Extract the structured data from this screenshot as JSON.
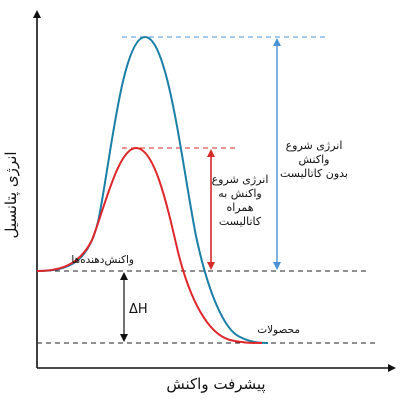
{
  "axes": {
    "y_label": "انرژی پتانسیل",
    "x_label": "پیشرفت واکنش"
  },
  "labels": {
    "reactants": "واکنش‌دهنده‌ها",
    "products": "محصولات",
    "delta_h": "ΔH",
    "uncatalyzed": [
      "انرژی شروع",
      "واکنش",
      "بدون کاتالیست"
    ],
    "catalyzed": [
      "انرژی شروع",
      "واکنش به",
      "همراه",
      "کاتالیست"
    ]
  },
  "colors": {
    "uncatalyzed_curve": "#1a7fa6",
    "catalyzed_curve": "#e0262a",
    "uncatalyzed_arrow": "#4a93d6",
    "catalyzed_arrow": "#d42a2a",
    "axis": "#111111",
    "dashed": "#222222"
  },
  "icons": {
    "arrow": "double-headed-arrow"
  }
}
